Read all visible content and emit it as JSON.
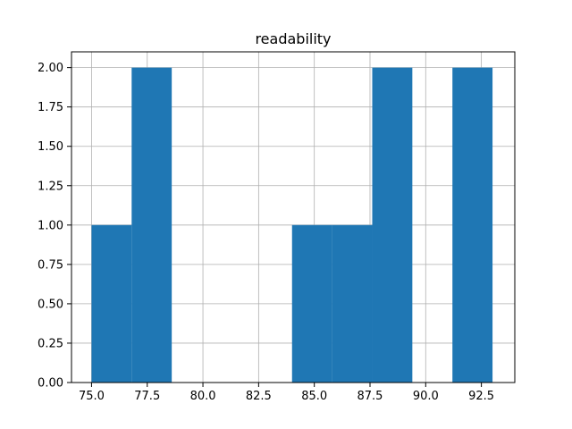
{
  "chart_data": {
    "type": "bar",
    "subtype": "histogram",
    "title": "readability",
    "xlabel": "",
    "ylabel": "",
    "grid": true,
    "bar_color": "#1f77b4",
    "bins": [
      {
        "start": 75.0,
        "end": 76.8,
        "count": 1
      },
      {
        "start": 76.8,
        "end": 78.6,
        "count": 2
      },
      {
        "start": 78.6,
        "end": 80.4,
        "count": 0
      },
      {
        "start": 80.4,
        "end": 82.2,
        "count": 0
      },
      {
        "start": 82.2,
        "end": 84.0,
        "count": 0
      },
      {
        "start": 84.0,
        "end": 85.8,
        "count": 1
      },
      {
        "start": 85.8,
        "end": 87.6,
        "count": 1
      },
      {
        "start": 87.6,
        "end": 89.4,
        "count": 2
      },
      {
        "start": 89.4,
        "end": 91.2,
        "count": 0
      },
      {
        "start": 91.2,
        "end": 93.0,
        "count": 2
      }
    ],
    "xlim": [
      74.1,
      94.0
    ],
    "ylim": [
      0,
      2.1
    ],
    "x_ticks": [
      75.0,
      77.5,
      80.0,
      82.5,
      85.0,
      87.5,
      90.0,
      92.5
    ],
    "x_tick_labels": [
      "75.0",
      "77.5",
      "80.0",
      "82.5",
      "85.0",
      "87.5",
      "90.0",
      "92.5"
    ],
    "y_ticks": [
      0.0,
      0.25,
      0.5,
      0.75,
      1.0,
      1.25,
      1.5,
      1.75,
      2.0
    ],
    "y_tick_labels": [
      "0.00",
      "0.25",
      "0.50",
      "0.75",
      "1.00",
      "1.25",
      "1.50",
      "1.75",
      "2.00"
    ]
  }
}
